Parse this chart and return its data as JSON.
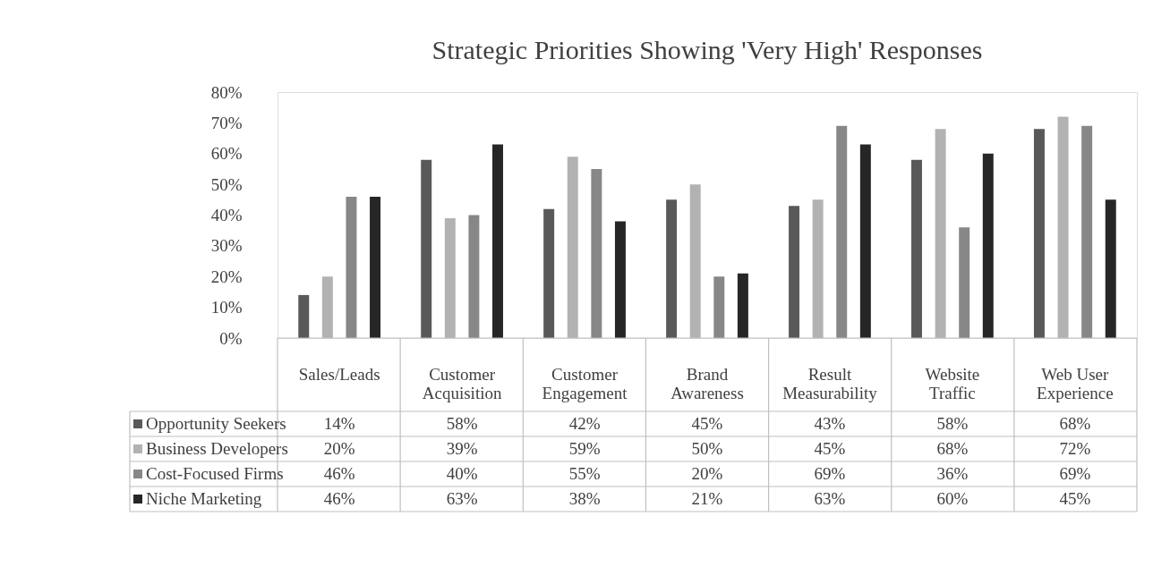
{
  "chart_data": {
    "type": "bar",
    "title": "Strategic Priorities Showing 'Very High' Responses",
    "categories": [
      "Sales/Leads",
      "Customer Acquisition",
      "Customer Engagement",
      "Brand Awareness",
      "Result Measurability",
      "Website Traffic",
      "Web User Experience"
    ],
    "series": [
      {
        "name": "Opportunity Seekers",
        "color": "#595959",
        "values": [
          14,
          58,
          42,
          45,
          43,
          58,
          68
        ],
        "value_labels": [
          "14%",
          "58%",
          "42%",
          "45%",
          "43%",
          "58%",
          "68%"
        ]
      },
      {
        "name": "Business Developers",
        "color": "#b2b2b2",
        "values": [
          20,
          39,
          59,
          50,
          45,
          68,
          72
        ],
        "value_labels": [
          "20%",
          "39%",
          "59%",
          "50%",
          "45%",
          "68%",
          "72%"
        ]
      },
      {
        "name": "Cost-Focused Firms",
        "color": "#878787",
        "values": [
          46,
          40,
          55,
          20,
          69,
          36,
          69
        ],
        "value_labels": [
          "46%",
          "40%",
          "55%",
          "20%",
          "69%",
          "36%",
          "69%"
        ]
      },
      {
        "name": "Niche Marketing",
        "color": "#262626",
        "values": [
          46,
          63,
          38,
          21,
          63,
          60,
          45
        ],
        "value_labels": [
          "46%",
          "63%",
          "38%",
          "21%",
          "63%",
          "60%",
          "45%"
        ]
      }
    ],
    "ylim": [
      0,
      80
    ],
    "yticks": [
      {
        "value": 0,
        "label": "0%"
      },
      {
        "value": 10,
        "label": "10%"
      },
      {
        "value": 20,
        "label": "20%"
      },
      {
        "value": 30,
        "label": "30%"
      },
      {
        "value": 40,
        "label": "40%"
      },
      {
        "value": 50,
        "label": "50%"
      },
      {
        "value": 60,
        "label": "60%"
      },
      {
        "value": 70,
        "label": "70%"
      },
      {
        "value": 80,
        "label": "80%"
      }
    ],
    "grid": false,
    "legend": "bottom left"
  }
}
